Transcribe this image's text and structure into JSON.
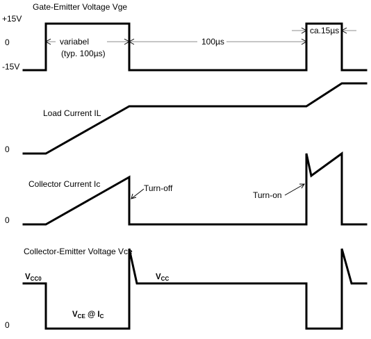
{
  "gate": {
    "title": "Gate-Emitter Voltage Vge",
    "y_plus": "+15V",
    "y_zero": "0",
    "y_minus": "-15V",
    "variable_line1": "variabel",
    "variable_line2": "(typ. 100µs)",
    "gap_label": "100µs",
    "pulse_label": "ca.15µs"
  },
  "load": {
    "title": "Load Current IL",
    "y_zero": "0"
  },
  "collector": {
    "title": "Collector Current Ic",
    "y_zero": "0",
    "turn_off": "Turn-off",
    "turn_on": "Turn-on"
  },
  "vce": {
    "title": "Collector-Emitter Voltage Vce",
    "y_zero": "0",
    "vcc0_main": "V",
    "vcc0_sub": "CC0",
    "vcc_main": "V",
    "vcc_sub": "CC",
    "vce_main": "V",
    "vce_sub": "CE",
    "vce_at": " @ I",
    "vce_ic_sub": "C"
  }
}
